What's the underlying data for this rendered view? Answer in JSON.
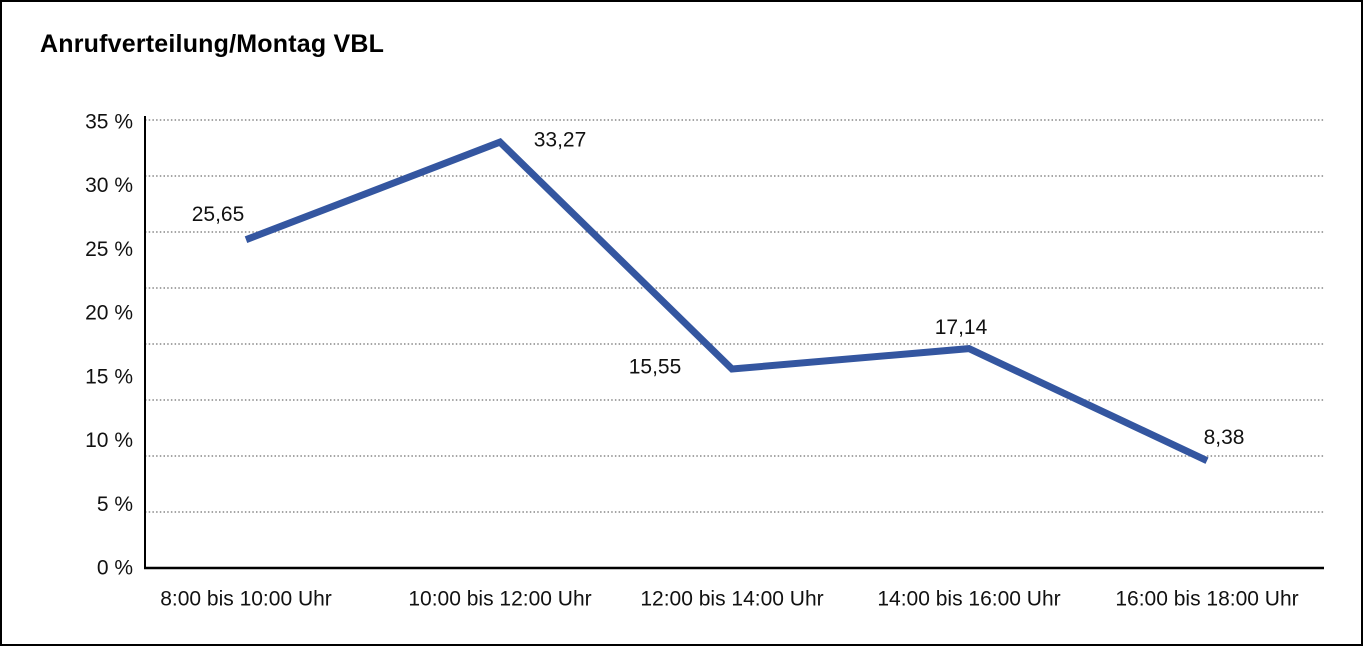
{
  "window": {
    "background": "#ffffff",
    "border_color": "#000000"
  },
  "chart_data": {
    "type": "line",
    "title": "Anrufverteilung/Montag VBL",
    "categories": [
      "8:00 bis 10:00 Uhr",
      "10:00 bis 12:00 Uhr",
      "12:00 bis 14:00 Uhr",
      "14:00 bis 16:00 Uhr",
      "16:00 bis 18:00 Uhr"
    ],
    "values": [
      25.65,
      33.27,
      15.55,
      17.14,
      8.38
    ],
    "data_labels": [
      "25,65",
      "33,27",
      "15,55",
      "17,14",
      "8,38"
    ],
    "y_tick_labels": [
      "35 %",
      "30 %",
      "25 %",
      "20 %",
      "15 %",
      "10 %",
      "5 %",
      "0 %"
    ],
    "ylim": [
      0,
      35
    ],
    "y_tick_step": 5,
    "xlabel": "",
    "ylabel": "",
    "legend": "none",
    "grid": "horizontal-dotted",
    "line_color": "#3456a0",
    "grid_color": "#6f6f6f",
    "axis_color": "#000000",
    "text_color": "#111111"
  }
}
